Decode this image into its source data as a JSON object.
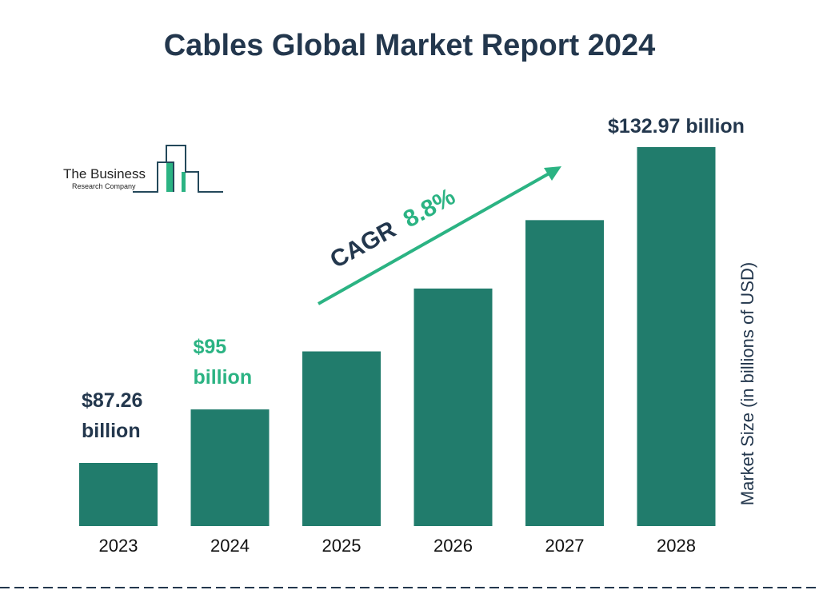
{
  "chart_data": {
    "type": "bar",
    "title": "Cables Global Market Report 2024",
    "ylabel": "Market Size (in billions of USD)",
    "xlabel": "",
    "categories": [
      "2023",
      "2024",
      "2025",
      "2026",
      "2027",
      "2028"
    ],
    "values": [
      87.26,
      95,
      103.4,
      112.5,
      122.4,
      132.97
    ],
    "data_labels": [
      {
        "index": 0,
        "line1": "$87.26",
        "line2": "billion",
        "color": "#23374d"
      },
      {
        "index": 1,
        "line1": "$95",
        "line2": "billion",
        "color": "#2bb383"
      },
      {
        "index": 5,
        "line1": "$132.97 billion",
        "line2": "",
        "color": "#23374d"
      }
    ],
    "annotation": {
      "prefix": "CAGR",
      "value": "8.8%"
    },
    "bar_color": "#217c6c",
    "grid": false
  },
  "logo": {
    "line1": "The Business",
    "line2": "Research Company"
  }
}
